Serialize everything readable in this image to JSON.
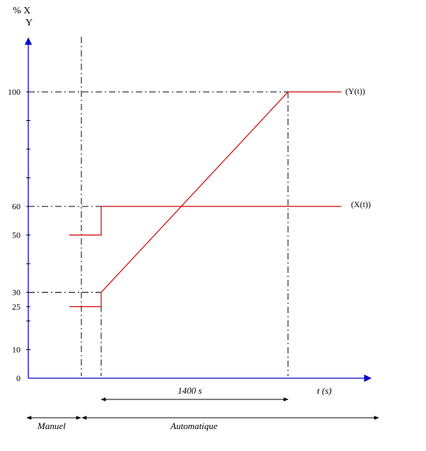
{
  "chart_data": {
    "type": "line",
    "ylabel_line1": "% X",
    "ylabel_line2": "Y",
    "xlabel": "t (s)",
    "ylim": [
      0,
      100
    ],
    "y_ticks": [
      0,
      10,
      25,
      30,
      50,
      60,
      100
    ],
    "series": [
      {
        "name": "(Y(t))",
        "color": "#cc0000",
        "points": [
          [
            -240,
            25
          ],
          [
            0,
            25
          ],
          [
            0,
            30
          ],
          [
            1400,
            100
          ],
          [
            1800,
            100
          ]
        ]
      },
      {
        "name": "(X(t))",
        "color": "#cc0000",
        "points": [
          [
            -240,
            50
          ],
          [
            0,
            50
          ],
          [
            0,
            60
          ],
          [
            1800,
            60
          ]
        ]
      }
    ],
    "duration_label": "1400 s",
    "modes": {
      "manual": "Manuel",
      "auto": "Automatique"
    }
  }
}
